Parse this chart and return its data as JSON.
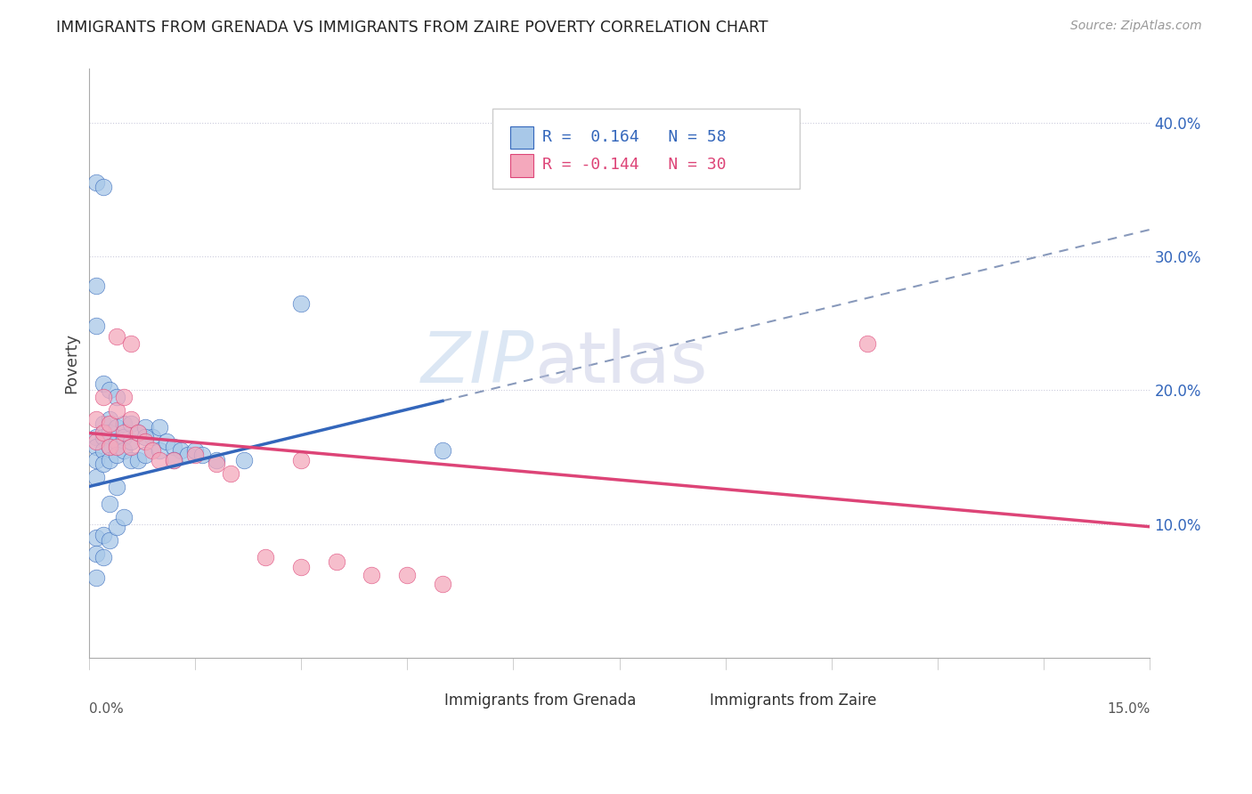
{
  "title": "IMMIGRANTS FROM GRENADA VS IMMIGRANTS FROM ZAIRE POVERTY CORRELATION CHART",
  "source": "Source: ZipAtlas.com",
  "ylabel": "Poverty",
  "ytick_labels": [
    "10.0%",
    "20.0%",
    "30.0%",
    "40.0%"
  ],
  "ytick_values": [
    0.1,
    0.2,
    0.3,
    0.4
  ],
  "xlim": [
    0.0,
    0.15
  ],
  "ylim": [
    0.0,
    0.44
  ],
  "color_grenada": "#a8c8e8",
  "color_zaire": "#f4a8bc",
  "line_color_grenada": "#3366bb",
  "line_color_zaire": "#dd4477",
  "line_dash_color": "#99aaccaa",
  "background_color": "#ffffff",
  "grid_color": "#ccccdd",
  "watermark_zip_color": "#c0d4ec",
  "watermark_atlas_color": "#c0c4e0",
  "grenada_x": [
    0.001,
    0.001,
    0.001,
    0.001,
    0.001,
    0.001,
    0.001,
    0.002,
    0.002,
    0.002,
    0.002,
    0.002,
    0.002,
    0.003,
    0.003,
    0.003,
    0.003,
    0.003,
    0.003,
    0.004,
    0.004,
    0.004,
    0.004,
    0.004,
    0.005,
    0.005,
    0.005,
    0.005,
    0.006,
    0.006,
    0.006,
    0.007,
    0.007,
    0.008,
    0.008,
    0.009,
    0.01,
    0.01,
    0.011,
    0.012,
    0.013,
    0.014,
    0.015,
    0.016,
    0.018,
    0.001,
    0.002,
    0.003,
    0.004,
    0.001,
    0.002,
    0.001,
    0.03,
    0.05,
    0.022,
    0.012,
    0.008
  ],
  "grenada_y": [
    0.165,
    0.158,
    0.148,
    0.135,
    0.09,
    0.078,
    0.06,
    0.175,
    0.165,
    0.155,
    0.145,
    0.092,
    0.075,
    0.178,
    0.168,
    0.158,
    0.148,
    0.115,
    0.088,
    0.172,
    0.162,
    0.152,
    0.128,
    0.098,
    0.175,
    0.165,
    0.155,
    0.105,
    0.175,
    0.162,
    0.148,
    0.168,
    0.148,
    0.172,
    0.152,
    0.165,
    0.172,
    0.155,
    0.162,
    0.158,
    0.155,
    0.152,
    0.155,
    0.152,
    0.148,
    0.248,
    0.205,
    0.2,
    0.195,
    0.355,
    0.352,
    0.278,
    0.265,
    0.155,
    0.148,
    0.148,
    0.165
  ],
  "zaire_x": [
    0.001,
    0.001,
    0.002,
    0.002,
    0.003,
    0.003,
    0.004,
    0.004,
    0.005,
    0.005,
    0.006,
    0.006,
    0.007,
    0.008,
    0.009,
    0.01,
    0.012,
    0.015,
    0.018,
    0.02,
    0.025,
    0.03,
    0.035,
    0.04,
    0.05,
    0.004,
    0.006,
    0.03,
    0.045,
    0.11
  ],
  "zaire_y": [
    0.178,
    0.162,
    0.195,
    0.168,
    0.175,
    0.158,
    0.185,
    0.158,
    0.195,
    0.168,
    0.178,
    0.158,
    0.168,
    0.162,
    0.155,
    0.148,
    0.148,
    0.152,
    0.145,
    0.138,
    0.075,
    0.068,
    0.072,
    0.062,
    0.055,
    0.24,
    0.235,
    0.148,
    0.062,
    0.235
  ],
  "grenada_line_x0": 0.0,
  "grenada_line_y0": 0.128,
  "grenada_line_x1": 0.05,
  "grenada_line_y1": 0.192,
  "zaire_line_x0": 0.0,
  "zaire_line_y0": 0.168,
  "zaire_line_x1": 0.15,
  "zaire_line_y1": 0.098
}
